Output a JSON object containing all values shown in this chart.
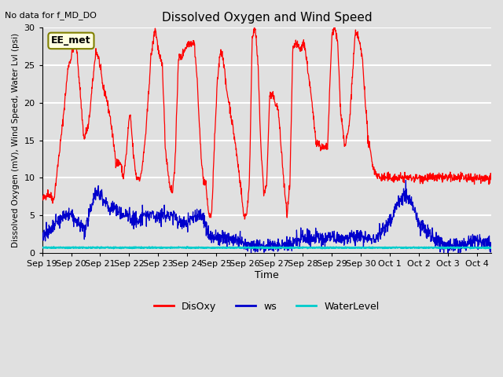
{
  "title": "Dissolved Oxygen and Wind Speed",
  "top_left_note": "No data for f_MD_DO",
  "annotation_box": "EE_met",
  "ylabel": "Dissolved Oxygen (mV), Wind Speed, Water Lvl (psi)",
  "xlabel": "Time",
  "ylim": [
    0,
    30
  ],
  "yticks": [
    0,
    5,
    10,
    15,
    20,
    25,
    30
  ],
  "xtick_positions": [
    0,
    1,
    2,
    3,
    4,
    5,
    6,
    7,
    8,
    9,
    10,
    11,
    12,
    13,
    14,
    15
  ],
  "xtick_labels": [
    "Sep 19",
    "Sep 20",
    "Sep 21",
    "Sep 22",
    "Sep 23",
    "Sep 24",
    "Sep 25",
    "Sep 26",
    "Sep 27",
    "Sep 28",
    "Sep 29",
    "Sep 30",
    "Oct 1",
    "Oct 2",
    "Oct 3",
    "Oct 4"
  ],
  "background_color": "#e0e0e0",
  "grid_color": "#ffffff",
  "disoxy_color": "#ff0000",
  "ws_color": "#0000cc",
  "waterlevel_color": "#00cccc",
  "legend_labels": [
    "DisOxy",
    "ws",
    "WaterLevel"
  ],
  "legend_colors": [
    "#ff0000",
    "#0000cc",
    "#00cccc"
  ],
  "disoxy_keypoints": [
    [
      0,
      7
    ],
    [
      0.2,
      8
    ],
    [
      0.4,
      7
    ],
    [
      0.7,
      17
    ],
    [
      0.9,
      25
    ],
    [
      1.0,
      26
    ],
    [
      1.15,
      29
    ],
    [
      1.3,
      22
    ],
    [
      1.4,
      17
    ],
    [
      1.45,
      15
    ],
    [
      1.5,
      16
    ],
    [
      1.6,
      17
    ],
    [
      1.7,
      21
    ],
    [
      1.85,
      27
    ],
    [
      1.95,
      26
    ],
    [
      2.1,
      22
    ],
    [
      2.2,
      21
    ],
    [
      2.35,
      18
    ],
    [
      2.45,
      15
    ],
    [
      2.55,
      12
    ],
    [
      2.7,
      12
    ],
    [
      2.8,
      10
    ],
    [
      2.9,
      13
    ],
    [
      3.0,
      18
    ],
    [
      3.05,
      18
    ],
    [
      3.15,
      13
    ],
    [
      3.25,
      10
    ],
    [
      3.4,
      10
    ],
    [
      3.5,
      13
    ],
    [
      3.6,
      17
    ],
    [
      3.75,
      26
    ],
    [
      3.9,
      30
    ],
    [
      4.05,
      26
    ],
    [
      4.15,
      25
    ],
    [
      4.25,
      14
    ],
    [
      4.4,
      9
    ],
    [
      4.5,
      8
    ],
    [
      4.6,
      13
    ],
    [
      4.7,
      26
    ],
    [
      4.8,
      26
    ],
    [
      4.9,
      27
    ],
    [
      5.05,
      28
    ],
    [
      5.25,
      28
    ],
    [
      5.35,
      23
    ],
    [
      5.45,
      15
    ],
    [
      5.55,
      10
    ],
    [
      5.65,
      9
    ],
    [
      5.75,
      5
    ],
    [
      5.85,
      5
    ],
    [
      5.95,
      15
    ],
    [
      6.05,
      23
    ],
    [
      6.15,
      27
    ],
    [
      6.25,
      26
    ],
    [
      6.35,
      22
    ],
    [
      6.45,
      20
    ],
    [
      6.65,
      15
    ],
    [
      6.85,
      9
    ],
    [
      6.95,
      5
    ],
    [
      7.05,
      5
    ],
    [
      7.15,
      9
    ],
    [
      7.25,
      29
    ],
    [
      7.35,
      30
    ],
    [
      7.45,
      25
    ],
    [
      7.55,
      14
    ],
    [
      7.65,
      8
    ],
    [
      7.75,
      9
    ],
    [
      7.85,
      21
    ],
    [
      7.95,
      21
    ],
    [
      8.05,
      20
    ],
    [
      8.15,
      19
    ],
    [
      8.25,
      14
    ],
    [
      8.35,
      9
    ],
    [
      8.45,
      5
    ],
    [
      8.55,
      9
    ],
    [
      8.65,
      27
    ],
    [
      8.75,
      28
    ],
    [
      8.9,
      27
    ],
    [
      9.05,
      28
    ],
    [
      9.25,
      22
    ],
    [
      9.45,
      15
    ],
    [
      9.65,
      14
    ],
    [
      9.85,
      14
    ],
    [
      10.0,
      29
    ],
    [
      10.1,
      30
    ],
    [
      10.2,
      28
    ],
    [
      10.3,
      19
    ],
    [
      10.45,
      14
    ],
    [
      10.6,
      17
    ],
    [
      10.8,
      29
    ],
    [
      10.9,
      29
    ],
    [
      11.05,
      26
    ],
    [
      11.25,
      15
    ],
    [
      11.45,
      11
    ],
    [
      11.65,
      10
    ],
    [
      12.0,
      10
    ],
    [
      13.0,
      10
    ],
    [
      14.0,
      10
    ],
    [
      15.0,
      10
    ],
    [
      15.5,
      10
    ]
  ],
  "ws_keypoints": [
    [
      0,
      2
    ],
    [
      0.3,
      3
    ],
    [
      0.5,
      4
    ],
    [
      0.8,
      5
    ],
    [
      1.0,
      5
    ],
    [
      1.2,
      4
    ],
    [
      1.5,
      3
    ],
    [
      1.8,
      8
    ],
    [
      2.0,
      8
    ],
    [
      2.3,
      6
    ],
    [
      2.5,
      6
    ],
    [
      2.8,
      5
    ],
    [
      3.0,
      5
    ],
    [
      3.3,
      4
    ],
    [
      3.5,
      5
    ],
    [
      3.8,
      5
    ],
    [
      4.0,
      5
    ],
    [
      4.3,
      5
    ],
    [
      4.5,
      5
    ],
    [
      4.8,
      4
    ],
    [
      5.0,
      4
    ],
    [
      5.3,
      5
    ],
    [
      5.5,
      5
    ],
    [
      5.8,
      2
    ],
    [
      6.0,
      2
    ],
    [
      6.5,
      2
    ],
    [
      7.0,
      1
    ],
    [
      7.5,
      1
    ],
    [
      8.0,
      1
    ],
    [
      8.5,
      1
    ],
    [
      9.0,
      2
    ],
    [
      9.5,
      2
    ],
    [
      10.0,
      2
    ],
    [
      10.5,
      2
    ],
    [
      11.0,
      2
    ],
    [
      11.5,
      2
    ],
    [
      12.0,
      4
    ],
    [
      12.3,
      7
    ],
    [
      12.5,
      8
    ],
    [
      12.7,
      7
    ],
    [
      13.0,
      4
    ],
    [
      13.5,
      2
    ],
    [
      14.0,
      1
    ],
    [
      14.5,
      1
    ],
    [
      15.0,
      2
    ],
    [
      15.5,
      1
    ],
    [
      15.8,
      0
    ]
  ]
}
